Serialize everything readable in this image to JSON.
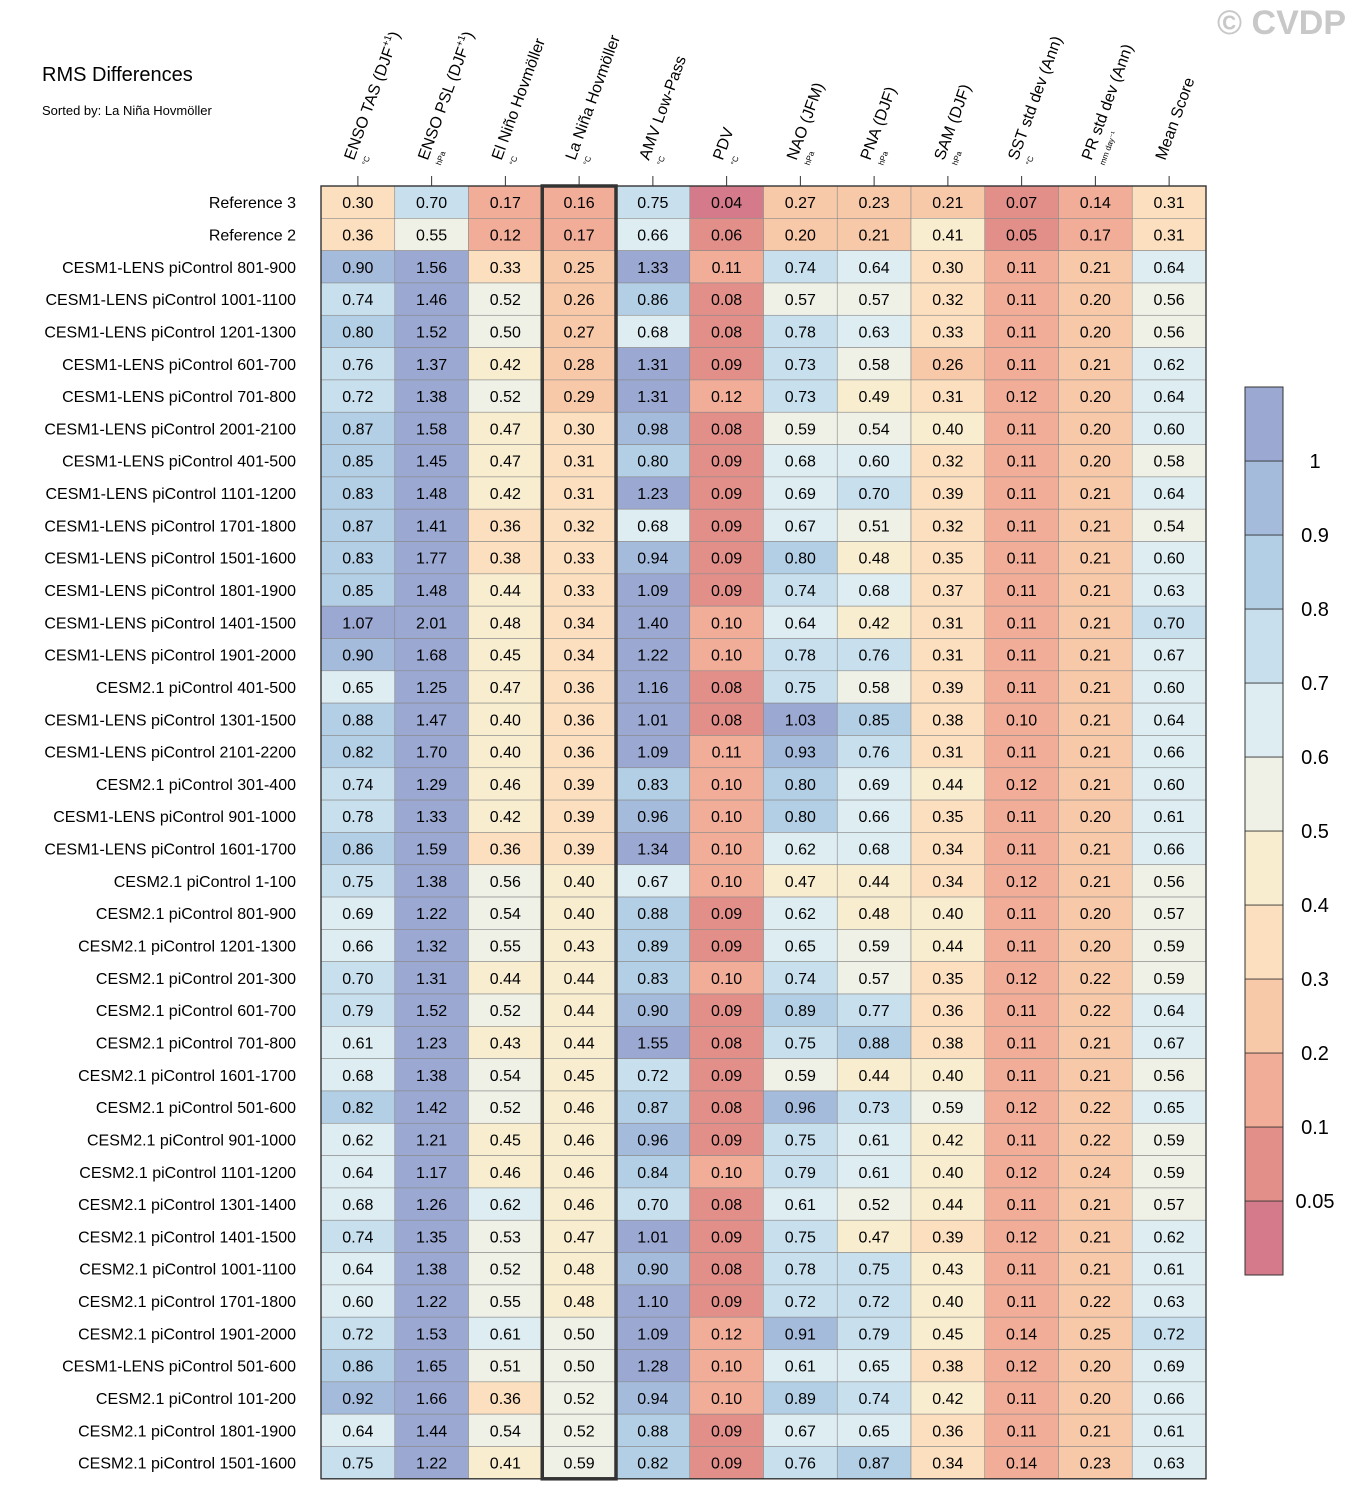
{
  "watermark": "© CVDP",
  "chart_data": {
    "type": "heatmap",
    "title": "RMS Differences",
    "subtitle": "Sorted by: La Niña Hovmöller",
    "highlight_column": 3,
    "columns": [
      {
        "label": "ENSO TAS (DJF",
        "sup": "+1",
        "unit": "°C"
      },
      {
        "label": "ENSO PSL (DJF",
        "sup": "+1",
        "unit": "hPa"
      },
      {
        "label": "El Niño Hovmöller",
        "unit": "°C"
      },
      {
        "label": "La Niña Hovmöller",
        "unit": "°C"
      },
      {
        "label": "AMV Low-Pass",
        "unit": "°C"
      },
      {
        "label": "PDV",
        "unit": "°C"
      },
      {
        "label": "NAO (JFM)",
        "unit": "hPa"
      },
      {
        "label": "PNA (DJF)",
        "unit": "hPa"
      },
      {
        "label": "SAM (DJF)",
        "unit": "hPa"
      },
      {
        "label": "SST std dev (Ann)",
        "unit": "°C"
      },
      {
        "label": "PR std dev (Ann)",
        "unit": "mm day⁻¹"
      },
      {
        "label": "Mean Score",
        "unit": ""
      }
    ],
    "rows": [
      {
        "label": "Reference 3",
        "values": [
          "0.30",
          "0.70",
          "0.17",
          "0.16",
          "0.75",
          "0.04",
          "0.27",
          "0.23",
          "0.21",
          "0.07",
          "0.14",
          "0.31"
        ]
      },
      {
        "label": "Reference 2",
        "values": [
          "0.36",
          "0.55",
          "0.12",
          "0.17",
          "0.66",
          "0.06",
          "0.20",
          "0.21",
          "0.41",
          "0.05",
          "0.17",
          "0.31"
        ]
      },
      {
        "label": "CESM1-LENS piControl 801-900",
        "values": [
          "0.90",
          "1.56",
          "0.33",
          "0.25",
          "1.33",
          "0.11",
          "0.74",
          "0.64",
          "0.30",
          "0.11",
          "0.21",
          "0.64"
        ]
      },
      {
        "label": "CESM1-LENS piControl 1001-1100",
        "values": [
          "0.74",
          "1.46",
          "0.52",
          "0.26",
          "0.86",
          "0.08",
          "0.57",
          "0.57",
          "0.32",
          "0.11",
          "0.20",
          "0.56"
        ]
      },
      {
        "label": "CESM1-LENS piControl 1201-1300",
        "values": [
          "0.80",
          "1.52",
          "0.50",
          "0.27",
          "0.68",
          "0.08",
          "0.78",
          "0.63",
          "0.33",
          "0.11",
          "0.20",
          "0.56"
        ]
      },
      {
        "label": "CESM1-LENS piControl 601-700",
        "values": [
          "0.76",
          "1.37",
          "0.42",
          "0.28",
          "1.31",
          "0.09",
          "0.73",
          "0.58",
          "0.26",
          "0.11",
          "0.21",
          "0.62"
        ]
      },
      {
        "label": "CESM1-LENS piControl 701-800",
        "values": [
          "0.72",
          "1.38",
          "0.52",
          "0.29",
          "1.31",
          "0.12",
          "0.73",
          "0.49",
          "0.31",
          "0.12",
          "0.20",
          "0.64"
        ]
      },
      {
        "label": "CESM1-LENS piControl 2001-2100",
        "values": [
          "0.87",
          "1.58",
          "0.47",
          "0.30",
          "0.98",
          "0.08",
          "0.59",
          "0.54",
          "0.40",
          "0.11",
          "0.20",
          "0.60"
        ]
      },
      {
        "label": "CESM1-LENS piControl 401-500",
        "values": [
          "0.85",
          "1.45",
          "0.47",
          "0.31",
          "0.80",
          "0.09",
          "0.68",
          "0.60",
          "0.32",
          "0.11",
          "0.20",
          "0.58"
        ]
      },
      {
        "label": "CESM1-LENS piControl 1101-1200",
        "values": [
          "0.83",
          "1.48",
          "0.42",
          "0.31",
          "1.23",
          "0.09",
          "0.69",
          "0.70",
          "0.39",
          "0.11",
          "0.21",
          "0.64"
        ]
      },
      {
        "label": "CESM1-LENS piControl 1701-1800",
        "values": [
          "0.87",
          "1.41",
          "0.36",
          "0.32",
          "0.68",
          "0.09",
          "0.67",
          "0.51",
          "0.32",
          "0.11",
          "0.21",
          "0.54"
        ]
      },
      {
        "label": "CESM1-LENS piControl 1501-1600",
        "values": [
          "0.83",
          "1.77",
          "0.38",
          "0.33",
          "0.94",
          "0.09",
          "0.80",
          "0.48",
          "0.35",
          "0.11",
          "0.21",
          "0.60"
        ]
      },
      {
        "label": "CESM1-LENS piControl 1801-1900",
        "values": [
          "0.85",
          "1.48",
          "0.44",
          "0.33",
          "1.09",
          "0.09",
          "0.74",
          "0.68",
          "0.37",
          "0.11",
          "0.21",
          "0.63"
        ]
      },
      {
        "label": "CESM1-LENS piControl 1401-1500",
        "values": [
          "1.07",
          "2.01",
          "0.48",
          "0.34",
          "1.40",
          "0.10",
          "0.64",
          "0.42",
          "0.31",
          "0.11",
          "0.21",
          "0.70"
        ]
      },
      {
        "label": "CESM1-LENS piControl 1901-2000",
        "values": [
          "0.90",
          "1.68",
          "0.45",
          "0.34",
          "1.22",
          "0.10",
          "0.78",
          "0.76",
          "0.31",
          "0.11",
          "0.21",
          "0.67"
        ]
      },
      {
        "label": "CESM2.1 piControl 401-500",
        "values": [
          "0.65",
          "1.25",
          "0.47",
          "0.36",
          "1.16",
          "0.08",
          "0.75",
          "0.58",
          "0.39",
          "0.11",
          "0.21",
          "0.60"
        ]
      },
      {
        "label": "CESM1-LENS piControl 1301-1500",
        "values": [
          "0.88",
          "1.47",
          "0.40",
          "0.36",
          "1.01",
          "0.08",
          "1.03",
          "0.85",
          "0.38",
          "0.10",
          "0.21",
          "0.64"
        ]
      },
      {
        "label": "CESM1-LENS piControl 2101-2200",
        "values": [
          "0.82",
          "1.70",
          "0.40",
          "0.36",
          "1.09",
          "0.11",
          "0.93",
          "0.76",
          "0.31",
          "0.11",
          "0.21",
          "0.66"
        ]
      },
      {
        "label": "CESM2.1 piControl 301-400",
        "values": [
          "0.74",
          "1.29",
          "0.46",
          "0.39",
          "0.83",
          "0.10",
          "0.80",
          "0.69",
          "0.44",
          "0.12",
          "0.21",
          "0.60"
        ]
      },
      {
        "label": "CESM1-LENS piControl 901-1000",
        "values": [
          "0.78",
          "1.33",
          "0.42",
          "0.39",
          "0.96",
          "0.10",
          "0.80",
          "0.66",
          "0.35",
          "0.11",
          "0.20",
          "0.61"
        ]
      },
      {
        "label": "CESM1-LENS piControl 1601-1700",
        "values": [
          "0.86",
          "1.59",
          "0.36",
          "0.39",
          "1.34",
          "0.10",
          "0.62",
          "0.68",
          "0.34",
          "0.11",
          "0.21",
          "0.66"
        ]
      },
      {
        "label": "CESM2.1 piControl 1-100",
        "values": [
          "0.75",
          "1.38",
          "0.56",
          "0.40",
          "0.67",
          "0.10",
          "0.47",
          "0.44",
          "0.34",
          "0.12",
          "0.21",
          "0.56"
        ]
      },
      {
        "label": "CESM2.1 piControl 801-900",
        "values": [
          "0.69",
          "1.22",
          "0.54",
          "0.40",
          "0.88",
          "0.09",
          "0.62",
          "0.48",
          "0.40",
          "0.11",
          "0.20",
          "0.57"
        ]
      },
      {
        "label": "CESM2.1 piControl 1201-1300",
        "values": [
          "0.66",
          "1.32",
          "0.55",
          "0.43",
          "0.89",
          "0.09",
          "0.65",
          "0.59",
          "0.44",
          "0.11",
          "0.20",
          "0.59"
        ]
      },
      {
        "label": "CESM2.1 piControl 201-300",
        "values": [
          "0.70",
          "1.31",
          "0.44",
          "0.44",
          "0.83",
          "0.10",
          "0.74",
          "0.57",
          "0.35",
          "0.12",
          "0.22",
          "0.59"
        ]
      },
      {
        "label": "CESM2.1 piControl 601-700",
        "values": [
          "0.79",
          "1.52",
          "0.52",
          "0.44",
          "0.90",
          "0.09",
          "0.89",
          "0.77",
          "0.36",
          "0.11",
          "0.22",
          "0.64"
        ]
      },
      {
        "label": "CESM2.1 piControl 701-800",
        "values": [
          "0.61",
          "1.23",
          "0.43",
          "0.44",
          "1.55",
          "0.08",
          "0.75",
          "0.88",
          "0.38",
          "0.11",
          "0.21",
          "0.67"
        ]
      },
      {
        "label": "CESM2.1 piControl 1601-1700",
        "values": [
          "0.68",
          "1.38",
          "0.54",
          "0.45",
          "0.72",
          "0.09",
          "0.59",
          "0.44",
          "0.40",
          "0.11",
          "0.21",
          "0.56"
        ]
      },
      {
        "label": "CESM2.1 piControl 501-600",
        "values": [
          "0.82",
          "1.42",
          "0.52",
          "0.46",
          "0.87",
          "0.08",
          "0.96",
          "0.73",
          "0.59",
          "0.12",
          "0.22",
          "0.65"
        ]
      },
      {
        "label": "CESM2.1 piControl 901-1000",
        "values": [
          "0.62",
          "1.21",
          "0.45",
          "0.46",
          "0.96",
          "0.09",
          "0.75",
          "0.61",
          "0.42",
          "0.11",
          "0.22",
          "0.59"
        ]
      },
      {
        "label": "CESM2.1 piControl 1101-1200",
        "values": [
          "0.64",
          "1.17",
          "0.46",
          "0.46",
          "0.84",
          "0.10",
          "0.79",
          "0.61",
          "0.40",
          "0.12",
          "0.24",
          "0.59"
        ]
      },
      {
        "label": "CESM2.1 piControl 1301-1400",
        "values": [
          "0.68",
          "1.26",
          "0.62",
          "0.46",
          "0.70",
          "0.08",
          "0.61",
          "0.52",
          "0.44",
          "0.11",
          "0.21",
          "0.57"
        ]
      },
      {
        "label": "CESM2.1 piControl 1401-1500",
        "values": [
          "0.74",
          "1.35",
          "0.53",
          "0.47",
          "1.01",
          "0.09",
          "0.75",
          "0.47",
          "0.39",
          "0.12",
          "0.21",
          "0.62"
        ]
      },
      {
        "label": "CESM2.1 piControl 1001-1100",
        "values": [
          "0.64",
          "1.38",
          "0.52",
          "0.48",
          "0.90",
          "0.08",
          "0.78",
          "0.75",
          "0.43",
          "0.11",
          "0.21",
          "0.61"
        ]
      },
      {
        "label": "CESM2.1 piControl 1701-1800",
        "values": [
          "0.60",
          "1.22",
          "0.55",
          "0.48",
          "1.10",
          "0.09",
          "0.72",
          "0.72",
          "0.40",
          "0.11",
          "0.22",
          "0.63"
        ]
      },
      {
        "label": "CESM2.1 piControl 1901-2000",
        "values": [
          "0.72",
          "1.53",
          "0.61",
          "0.50",
          "1.09",
          "0.12",
          "0.91",
          "0.79",
          "0.45",
          "0.14",
          "0.25",
          "0.72"
        ]
      },
      {
        "label": "CESM1-LENS piControl 501-600",
        "values": [
          "0.86",
          "1.65",
          "0.51",
          "0.50",
          "1.28",
          "0.10",
          "0.61",
          "0.65",
          "0.38",
          "0.12",
          "0.20",
          "0.69"
        ]
      },
      {
        "label": "CESM2.1 piControl 101-200",
        "values": [
          "0.92",
          "1.66",
          "0.36",
          "0.52",
          "0.94",
          "0.10",
          "0.89",
          "0.74",
          "0.42",
          "0.11",
          "0.20",
          "0.66"
        ]
      },
      {
        "label": "CESM2.1 piControl 1801-1900",
        "values": [
          "0.64",
          "1.44",
          "0.54",
          "0.52",
          "0.88",
          "0.09",
          "0.67",
          "0.65",
          "0.36",
          "0.11",
          "0.21",
          "0.61"
        ]
      },
      {
        "label": "CESM2.1 piControl 1501-1600",
        "values": [
          "0.75",
          "1.22",
          "0.41",
          "0.59",
          "0.82",
          "0.09",
          "0.76",
          "0.87",
          "0.34",
          "0.14",
          "0.23",
          "0.63"
        ]
      }
    ],
    "colorbar": {
      "ticks": [
        "1",
        "0.9",
        "0.8",
        "0.7",
        "0.6",
        "0.5",
        "0.4",
        "0.3",
        "0.2",
        "0.1",
        "0.05"
      ],
      "levels": [
        0.05,
        0.1,
        0.2,
        0.3,
        0.4,
        0.5,
        0.6,
        0.7,
        0.8,
        0.9,
        1.0
      ],
      "colors": [
        "#d47a8a",
        "#e28f8a",
        "#f2ad98",
        "#f8c9a8",
        "#fbdfbe",
        "#f9edcf",
        "#eff0e6",
        "#deedf2",
        "#c8e0ee",
        "#b3cfe5",
        "#a5bbdc",
        "#9aa8d2"
      ]
    }
  }
}
